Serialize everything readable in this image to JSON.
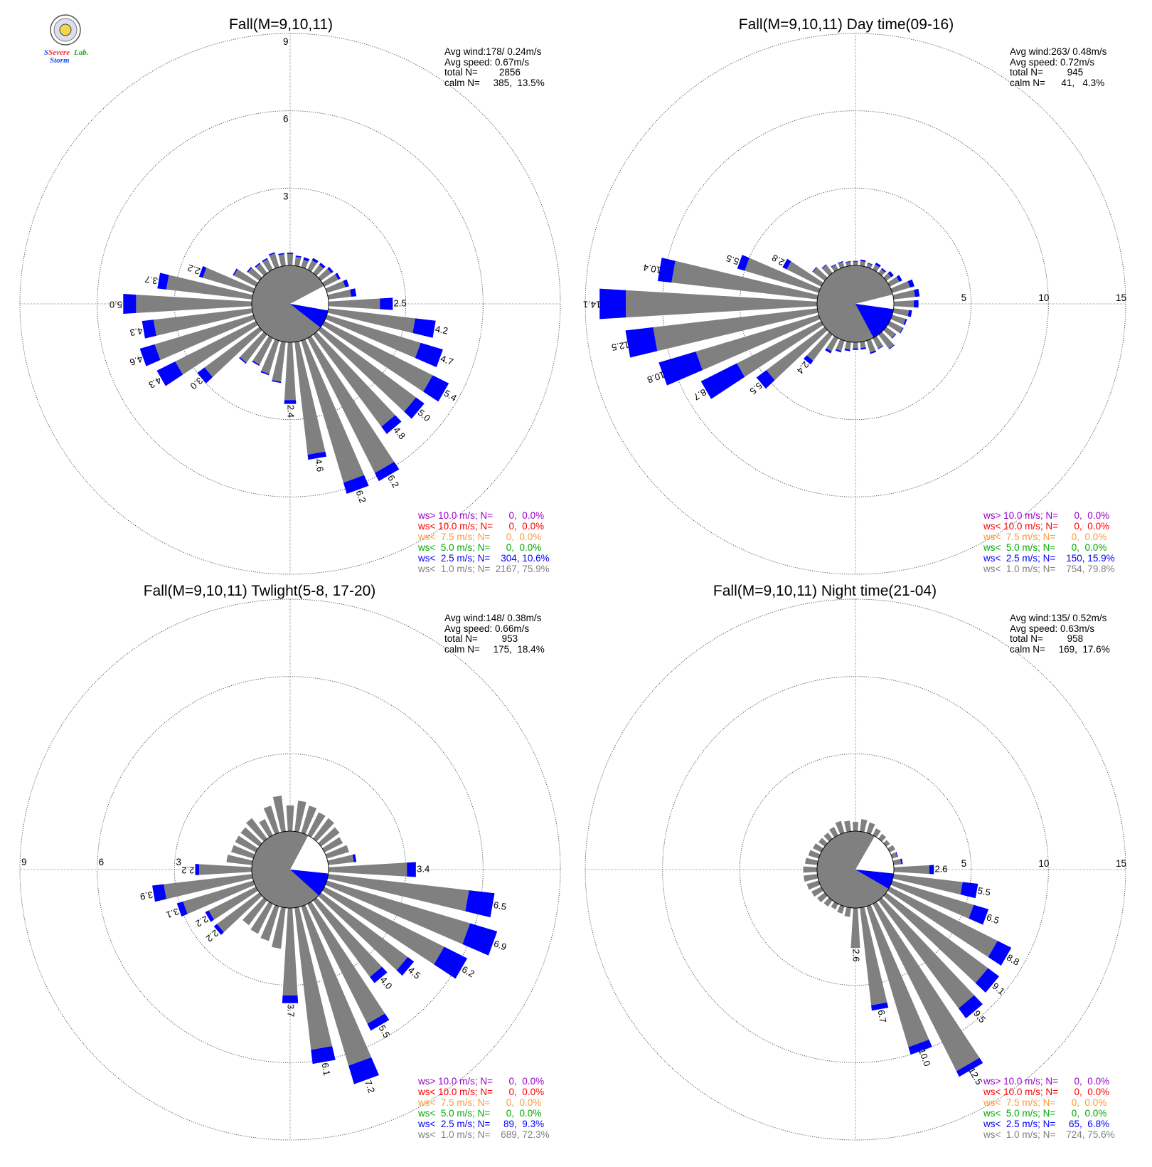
{
  "colors": {
    "ws_gt_10": "#9900cc",
    "ws_lt_10": "#ff0000",
    "ws_lt_7_5": "#ff9933",
    "ws_lt_5": "#00aa00",
    "ws_lt_2_5": "#0000ff",
    "ws_lt_1": "#808080",
    "axis": "#808080",
    "calm_fill": "#808080"
  },
  "logo": {
    "word1": "Severe",
    "word2": "Storm",
    "word3": "Lab."
  },
  "chart_data": [
    {
      "type": "windrose",
      "title": "Fall(M=9,10,11)",
      "rmax": 9,
      "ring_labels": [
        "3",
        "6",
        "9"
      ],
      "ring_label_mode": "vertical",
      "stats": {
        "avg_wind": "Avg wind:178/ 0.24m/s",
        "avg_speed": "Avg speed: 0.67m/s",
        "total": "total N=        2856",
        "calm": "calm N=     385,  13.5%"
      },
      "calm_fraction": 0.135,
      "white_sector_deg": [
        62,
        100
      ],
      "blue_sector_deg": [
        100,
        128
      ],
      "legend": [
        "ws> 10.0 m/s; N=      0,  0.0%",
        "ws< 10.0 m/s; N=      0,  0.0%",
        "ws<  7.5 m/s; N=      0,  0.0%",
        "ws<  5.0 m/s; N=      0,  0.0%",
        "ws<  2.5 m/s; N=    304, 10.6%",
        "ws<  1.0 m/s; N=  2167, 75.9%"
      ],
      "bars": [
        {
          "dir": 0,
          "total": 0.5,
          "blue": 0.05
        },
        {
          "dir": 10,
          "total": 0.4,
          "blue": 0.05
        },
        {
          "dir": 20,
          "total": 0.4,
          "blue": 0.1
        },
        {
          "dir": 30,
          "total": 0.5,
          "blue": 0.1
        },
        {
          "dir": 40,
          "total": 0.5,
          "blue": 0.1
        },
        {
          "dir": 50,
          "total": 0.6,
          "blue": 0.1
        },
        {
          "dir": 60,
          "total": 0.7,
          "blue": 0.1
        },
        {
          "dir": 70,
          "total": 0.9,
          "blue": 0.15
        },
        {
          "dir": 80,
          "total": 1.1,
          "blue": 0.2
        },
        {
          "dir": 90,
          "total": 2.5,
          "label": "2.5",
          "blue": 0.5
        },
        {
          "dir": 100,
          "total": 4.2,
          "label": "4.2",
          "blue": 0.8
        },
        {
          "dir": 110,
          "total": 4.7,
          "label": "4.7",
          "blue": 0.9
        },
        {
          "dir": 120,
          "total": 5.4,
          "label": "5.4",
          "blue": 0.7
        },
        {
          "dir": 130,
          "total": 5.0,
          "label": "5.0",
          "blue": 0.4
        },
        {
          "dir": 140,
          "total": 4.8,
          "label": "4.8",
          "blue": 0.35
        },
        {
          "dir": 150,
          "total": 6.2,
          "label": "6.2",
          "blue": 0.35
        },
        {
          "dir": 160,
          "total": 6.2,
          "label": "6.2",
          "blue": 0.45
        },
        {
          "dir": 170,
          "total": 4.6,
          "label": "4.6",
          "blue": 0.2
        },
        {
          "dir": 180,
          "total": 2.4,
          "label": "2.4",
          "blue": 0.15
        },
        {
          "dir": 190,
          "total": 1.6,
          "blue": 0.05
        },
        {
          "dir": 200,
          "total": 1.4,
          "blue": 0.05
        },
        {
          "dir": 210,
          "total": 1.2,
          "blue": 0.05
        },
        {
          "dir": 220,
          "total": 1.4,
          "blue": 0.05
        },
        {
          "dir": 230,
          "total": 3.0,
          "label": "3.0",
          "blue": 0.35
        },
        {
          "dir": 240,
          "total": 4.3,
          "label": "4.3",
          "blue": 0.8
        },
        {
          "dir": 250,
          "total": 4.6,
          "label": "4.6",
          "blue": 0.6
        },
        {
          "dir": 260,
          "total": 4.3,
          "label": "4.3",
          "blue": 0.45
        },
        {
          "dir": 270,
          "total": 5.0,
          "label": "5.0",
          "blue": 0.5
        },
        {
          "dir": 280,
          "total": 3.7,
          "label": "3.7",
          "blue": 0.35
        },
        {
          "dir": 290,
          "total": 2.2,
          "label": "2.2",
          "blue": 0.15
        },
        {
          "dir": 300,
          "total": 1.0,
          "blue": 0.05
        },
        {
          "dir": 310,
          "total": 0.6,
          "blue": 0.05
        },
        {
          "dir": 320,
          "total": 0.5,
          "blue": 0.05
        },
        {
          "dir": 330,
          "total": 0.5,
          "blue": 0.05
        },
        {
          "dir": 340,
          "total": 0.6,
          "blue": 0.05
        },
        {
          "dir": 350,
          "total": 0.5,
          "blue": 0.05
        }
      ]
    },
    {
      "type": "windrose",
      "title": "Fall(M=9,10,11) Day time(09-16)",
      "rmax": 15,
      "ring_labels": [
        "5",
        "10",
        "15"
      ],
      "ring_label_mode": "horizontal",
      "stats": {
        "avg_wind": "Avg wind:263/ 0.48m/s",
        "avg_speed": "Avg speed: 0.72m/s",
        "total": "total N=         945",
        "calm": "calm N=      41,   4.3%"
      },
      "calm_fraction": 0.043,
      "white_sector_deg": [
        76,
        98
      ],
      "blue_sector_deg": [
        98,
        152
      ],
      "legend": [
        "ws> 10.0 m/s; N=      0,  0.0%",
        "ws< 10.0 m/s; N=      0,  0.0%",
        "ws<  7.5 m/s; N=      0,  0.0%",
        "ws<  5.0 m/s; N=      0,  0.0%",
        "ws<  2.5 m/s; N=    150, 15.9%",
        "ws<  1.0 m/s; N=    754, 79.8%"
      ],
      "bars": [
        {
          "dir": 0,
          "total": 0.3,
          "blue": 0.05
        },
        {
          "dir": 10,
          "total": 0.4,
          "blue": 0.1
        },
        {
          "dir": 20,
          "total": 0.3,
          "blue": 0.05
        },
        {
          "dir": 30,
          "total": 0.5,
          "blue": 0.15
        },
        {
          "dir": 40,
          "total": 0.4,
          "blue": 0.1
        },
        {
          "dir": 50,
          "total": 0.6,
          "blue": 0.2
        },
        {
          "dir": 60,
          "total": 0.9,
          "blue": 0.2
        },
        {
          "dir": 70,
          "total": 1.5,
          "blue": 0.3
        },
        {
          "dir": 80,
          "total": 1.7,
          "blue": 0.3
        },
        {
          "dir": 90,
          "total": 1.6,
          "blue": 0.3
        },
        {
          "dir": 100,
          "total": 1.2,
          "blue": 0.2
        },
        {
          "dir": 110,
          "total": 1.0,
          "blue": 0.1
        },
        {
          "dir": 120,
          "total": 1.0,
          "blue": 0.05
        },
        {
          "dir": 130,
          "total": 0.8,
          "blue": 0.05
        },
        {
          "dir": 140,
          "total": 1.2,
          "blue": 0.05
        },
        {
          "dir": 150,
          "total": 0.8,
          "blue": 0.05
        },
        {
          "dir": 160,
          "total": 0.9,
          "blue": 0.1
        },
        {
          "dir": 170,
          "total": 0.5,
          "blue": 0.1
        },
        {
          "dir": 180,
          "total": 0.5,
          "blue": 0.1
        },
        {
          "dir": 190,
          "total": 0.6,
          "blue": 0.1
        },
        {
          "dir": 200,
          "total": 0.8,
          "blue": 0.1
        },
        {
          "dir": 210,
          "total": 1.1,
          "blue": 0.15
        },
        {
          "dir": 220,
          "total": 2.4,
          "label": "2.4",
          "blue": 0.3
        },
        {
          "dir": 230,
          "total": 5.5,
          "label": "5.5",
          "blue": 0.8
        },
        {
          "dir": 240,
          "total": 8.7,
          "label": "8.7",
          "blue": 2.6
        },
        {
          "dir": 250,
          "total": 10.8,
          "label": "10.8",
          "blue": 2.5
        },
        {
          "dir": 260,
          "total": 12.5,
          "label": "12.5",
          "blue": 1.8
        },
        {
          "dir": 270,
          "total": 14.1,
          "label": "14.1",
          "blue": 1.7
        },
        {
          "dir": 280,
          "total": 10.4,
          "label": "10.4",
          "blue": 0.9
        },
        {
          "dir": 290,
          "total": 5.5,
          "label": "5.5",
          "blue": 0.5
        },
        {
          "dir": 300,
          "total": 2.8,
          "label": "2.8",
          "blue": 0.3
        },
        {
          "dir": 310,
          "total": 1.0,
          "blue": 0.05
        },
        {
          "dir": 320,
          "total": 0.7,
          "blue": 0.05
        },
        {
          "dir": 330,
          "total": 0.4,
          "blue": 0.05
        },
        {
          "dir": 340,
          "total": 0.4,
          "blue": 0.05
        },
        {
          "dir": 350,
          "total": 0.3,
          "blue": 0.05
        }
      ]
    },
    {
      "type": "windrose",
      "title": "Fall(M=9,10,11) Twlight(5-8, 17-20)",
      "rmax": 9,
      "ring_labels": [
        "3",
        "6",
        "9"
      ],
      "ring_label_mode": "horizontal-left",
      "stats": {
        "avg_wind": "Avg wind:148/ 0.38m/s",
        "avg_speed": "Avg speed: 0.66m/s",
        "total": "total N=         953",
        "calm": "calm N=     175,  18.4%"
      },
      "calm_fraction": 0.184,
      "white_sector_deg": [
        28,
        96
      ],
      "blue_sector_deg": [
        96,
        132
      ],
      "legend": [
        "ws> 10.0 m/s; N=      0,  0.0%",
        "ws< 10.0 m/s; N=      0,  0.0%",
        "ws<  7.5 m/s; N=      0,  0.0%",
        "ws<  5.0 m/s; N=      0,  0.0%",
        "ws<  2.5 m/s; N=     89,  9.3%",
        "ws<  1.0 m/s; N=    689, 72.3%"
      ],
      "bars": [
        {
          "dir": 0,
          "total": 1.0,
          "blue": 0.0
        },
        {
          "dir": 10,
          "total": 1.2,
          "blue": 0.0
        },
        {
          "dir": 20,
          "total": 1.1,
          "blue": 0.0
        },
        {
          "dir": 30,
          "total": 1.0,
          "blue": 0.0
        },
        {
          "dir": 40,
          "total": 1.0,
          "blue": 0.0
        },
        {
          "dir": 50,
          "total": 0.9,
          "blue": 0.0
        },
        {
          "dir": 60,
          "total": 0.8,
          "blue": 0.0
        },
        {
          "dir": 70,
          "total": 0.9,
          "blue": 0.0
        },
        {
          "dir": 80,
          "total": 1.1,
          "blue": 0.1
        },
        {
          "dir": 90,
          "total": 3.4,
          "label": "3.4",
          "blue": 0.35
        },
        {
          "dir": 100,
          "total": 6.5,
          "label": "6.5",
          "blue": 1.0
        },
        {
          "dir": 110,
          "total": 6.9,
          "label": "6.9",
          "blue": 1.1
        },
        {
          "dir": 120,
          "total": 6.2,
          "label": "6.2",
          "blue": 1.0
        },
        {
          "dir": 130,
          "total": 4.5,
          "label": "4.5",
          "blue": 0.3
        },
        {
          "dir": 140,
          "total": 4.0,
          "label": "4.0",
          "blue": 0.3
        },
        {
          "dir": 150,
          "total": 5.5,
          "label": "5.5",
          "blue": 0.3
        },
        {
          "dir": 160,
          "total": 7.2,
          "label": "7.2",
          "blue": 0.75
        },
        {
          "dir": 170,
          "total": 6.1,
          "label": "6.1",
          "blue": 0.55
        },
        {
          "dir": 180,
          "total": 3.7,
          "label": "3.7",
          "blue": 0.3
        },
        {
          "dir": 190,
          "total": 1.6,
          "blue": 0.0
        },
        {
          "dir": 200,
          "total": 1.4,
          "blue": 0.0
        },
        {
          "dir": 210,
          "total": 1.3,
          "blue": 0.0
        },
        {
          "dir": 220,
          "total": 1.2,
          "blue": 0.0
        },
        {
          "dir": 230,
          "total": 2.2,
          "label": "2.2",
          "blue": 0.15
        },
        {
          "dir": 240,
          "total": 2.2,
          "label": "2.2",
          "blue": 0.15
        },
        {
          "dir": 250,
          "total": 3.1,
          "label": "3.1",
          "blue": 0.25
        },
        {
          "dir": 260,
          "total": 3.9,
          "label": "3.9",
          "blue": 0.45
        },
        {
          "dir": 270,
          "total": 2.2,
          "label": "2.2",
          "blue": 0.15
        },
        {
          "dir": 280,
          "total": 1.0,
          "blue": 0.0
        },
        {
          "dir": 290,
          "total": 0.9,
          "blue": 0.0
        },
        {
          "dir": 300,
          "total": 0.9,
          "blue": 0.0
        },
        {
          "dir": 310,
          "total": 0.9,
          "blue": 0.0
        },
        {
          "dir": 320,
          "total": 1.0,
          "blue": 0.0
        },
        {
          "dir": 330,
          "total": 0.7,
          "blue": 0.0
        },
        {
          "dir": 340,
          "total": 1.1,
          "blue": 0.0
        },
        {
          "dir": 350,
          "total": 1.4,
          "blue": 0.0
        }
      ]
    },
    {
      "type": "windrose",
      "title": "Fall(M=9,10,11) Night time(21-04)",
      "rmax": 15,
      "ring_labels": [
        "5",
        "10",
        "15"
      ],
      "ring_label_mode": "horizontal",
      "stats": {
        "avg_wind": "Avg wind:135/ 0.52m/s",
        "avg_speed": "Avg speed: 0.63m/s",
        "total": "total N=         958",
        "calm": "calm N=     169,  17.6%"
      },
      "calm_fraction": 0.176,
      "white_sector_deg": [
        30,
        96
      ],
      "blue_sector_deg": [
        96,
        120
      ],
      "legend": [
        "ws> 10.0 m/s; N=      0,  0.0%",
        "ws< 10.0 m/s; N=      0,  0.0%",
        "ws<  7.5 m/s; N=      0,  0.0%",
        "ws<  5.0 m/s; N=      0,  0.0%",
        "ws<  2.5 m/s; N=     65,  6.8%",
        "ws<  1.0 m/s; N=    724, 75.6%"
      ],
      "bars": [
        {
          "dir": 0,
          "total": 0.6,
          "blue": 0.0
        },
        {
          "dir": 10,
          "total": 0.8,
          "blue": 0.0
        },
        {
          "dir": 20,
          "total": 0.7,
          "blue": 0.0
        },
        {
          "dir": 30,
          "total": 0.5,
          "blue": 0.0
        },
        {
          "dir": 40,
          "total": 0.4,
          "blue": 0.0
        },
        {
          "dir": 50,
          "total": 0.3,
          "blue": 0.0
        },
        {
          "dir": 60,
          "total": 0.4,
          "blue": 0.0
        },
        {
          "dir": 70,
          "total": 0.4,
          "blue": 0.05
        },
        {
          "dir": 80,
          "total": 0.6,
          "blue": 0.1
        },
        {
          "dir": 90,
          "total": 2.6,
          "label": "2.6",
          "blue": 0.3
        },
        {
          "dir": 100,
          "total": 5.5,
          "label": "5.5",
          "blue": 1.0
        },
        {
          "dir": 110,
          "total": 6.5,
          "label": "6.5",
          "blue": 1.0
        },
        {
          "dir": 120,
          "total": 8.8,
          "label": "8.8",
          "blue": 1.0
        },
        {
          "dir": 130,
          "total": 9.1,
          "label": "9.1",
          "blue": 0.9
        },
        {
          "dir": 140,
          "total": 9.5,
          "label": "9.5",
          "blue": 0.8
        },
        {
          "dir": 150,
          "total": 12.5,
          "label": "12.5",
          "blue": 0.4
        },
        {
          "dir": 160,
          "total": 10.0,
          "label": "10.0",
          "blue": 0.5
        },
        {
          "dir": 170,
          "total": 6.7,
          "label": "6.7",
          "blue": 0.35
        },
        {
          "dir": 180,
          "total": 2.6,
          "label": "2.6",
          "blue": 0.0
        },
        {
          "dir": 190,
          "total": 0.6,
          "blue": 0.0
        },
        {
          "dir": 200,
          "total": 0.5,
          "blue": 0.0
        },
        {
          "dir": 210,
          "total": 0.4,
          "blue": 0.0
        },
        {
          "dir": 220,
          "total": 0.5,
          "blue": 0.0
        },
        {
          "dir": 230,
          "total": 0.6,
          "blue": 0.0
        },
        {
          "dir": 240,
          "total": 0.7,
          "blue": 0.0
        },
        {
          "dir": 250,
          "total": 0.8,
          "blue": 0.0
        },
        {
          "dir": 260,
          "total": 0.9,
          "blue": 0.0
        },
        {
          "dir": 270,
          "total": 0.9,
          "blue": 0.0
        },
        {
          "dir": 280,
          "total": 0.8,
          "blue": 0.0
        },
        {
          "dir": 290,
          "total": 0.7,
          "blue": 0.0
        },
        {
          "dir": 300,
          "total": 0.6,
          "blue": 0.0
        },
        {
          "dir": 310,
          "total": 0.5,
          "blue": 0.0
        },
        {
          "dir": 320,
          "total": 0.5,
          "blue": 0.0
        },
        {
          "dir": 330,
          "total": 0.6,
          "blue": 0.0
        },
        {
          "dir": 340,
          "total": 0.8,
          "blue": 0.0
        },
        {
          "dir": 350,
          "total": 0.7,
          "blue": 0.0
        }
      ]
    }
  ]
}
